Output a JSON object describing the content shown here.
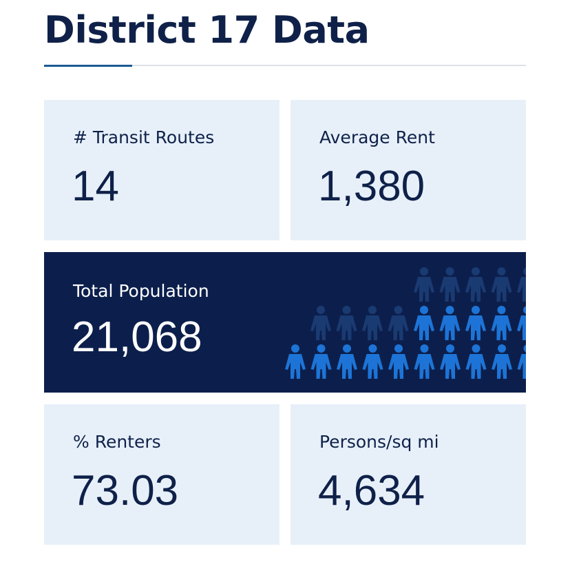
{
  "page": {
    "title": "District 17 Data"
  },
  "stats": {
    "transit_routes": {
      "label": "# Transit Routes",
      "value": "14"
    },
    "average_rent": {
      "label": "Average Rent",
      "value": "1,380"
    },
    "total_population": {
      "label": "Total Population",
      "value": "21,068"
    },
    "pct_renters": {
      "label": "% Renters",
      "value": "73.03"
    },
    "persons_per_sq_mi": {
      "label": "Persons/sq mi",
      "value": "4,634"
    }
  },
  "colors": {
    "title": "#0f2149",
    "card_bg": "#e7f0f9",
    "banner_bg": "#0c1f4c",
    "person_bright": "#1d74d6",
    "person_dim": "#1a3a72",
    "accent_rule": "#1a5a93"
  },
  "icons": {
    "population_graphic": "person-icon"
  }
}
